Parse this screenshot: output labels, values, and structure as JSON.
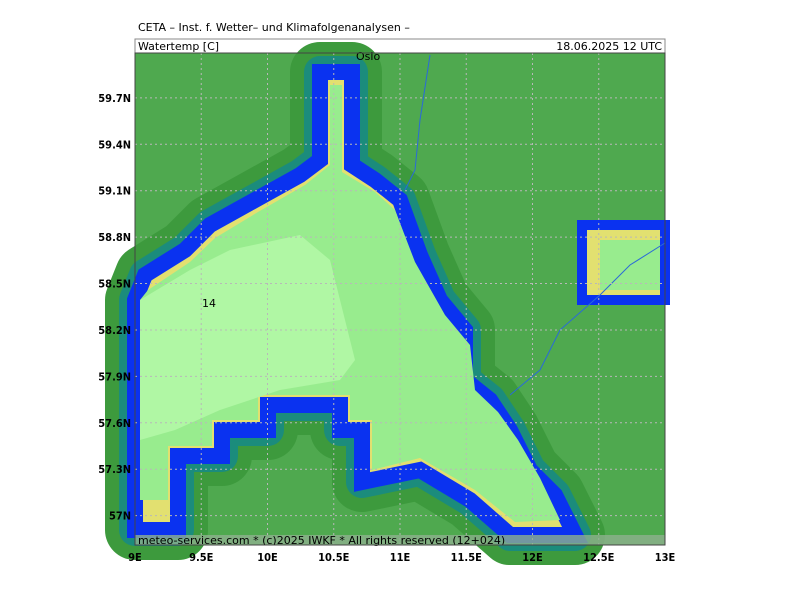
{
  "header": {
    "title": "CETA – Inst. f. Wetter– und Klimafolgenanalysen –",
    "variable": "Watertemp [C]",
    "valid_time": "18.06.2025 12 UTC"
  },
  "map": {
    "lon_lim": [
      9,
      13
    ],
    "lat_lim": [
      56.81,
      59.99
    ],
    "lon_ticks": [
      {
        "value": 9,
        "label": "9E"
      },
      {
        "value": 9.5,
        "label": "9.5E"
      },
      {
        "value": 10,
        "label": "10E"
      },
      {
        "value": 10.5,
        "label": "10.5E"
      },
      {
        "value": 11,
        "label": "11E"
      },
      {
        "value": 11.5,
        "label": "11.5E"
      },
      {
        "value": 12,
        "label": "12E"
      },
      {
        "value": 12.5,
        "label": "12.5E"
      },
      {
        "value": 13,
        "label": "13E"
      }
    ],
    "lat_ticks": [
      {
        "value": 57,
        "label": "57N"
      },
      {
        "value": 57.3,
        "label": "57.3N"
      },
      {
        "value": 57.6,
        "label": "57.6N"
      },
      {
        "value": 57.9,
        "label": "57.9N"
      },
      {
        "value": 58.2,
        "label": "58.2N"
      },
      {
        "value": 58.5,
        "label": "58.5N"
      },
      {
        "value": 58.8,
        "label": "58.8N"
      },
      {
        "value": 59.1,
        "label": "59.1N"
      },
      {
        "value": 59.4,
        "label": "59.4N"
      },
      {
        "value": 59.7,
        "label": "59.7N"
      }
    ],
    "city": "Oslo",
    "contour_label": "14"
  },
  "footer": "meteo-services.com * (c)2025 IWKF * All rights reserved (12+024)"
}
